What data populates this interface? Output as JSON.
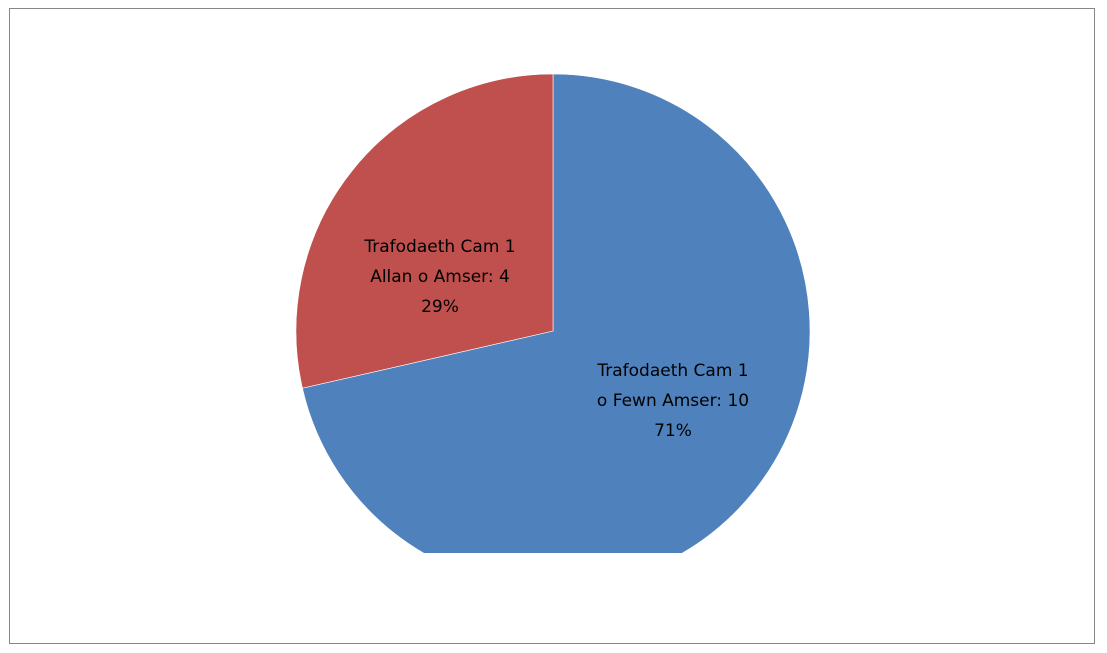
{
  "chart_data": {
    "type": "pie",
    "slices": [
      {
        "label": "Trafodaeth Cam 1 o Fewn Amser",
        "value": 10,
        "percent": "71%",
        "color": "#4F81BD",
        "data_label_lines": [
          "Trafodaeth Cam 1",
          "o Fewn Amser: 10",
          "71%"
        ]
      },
      {
        "label": "Trafodaeth Cam 1 Allan o Amser",
        "value": 4,
        "percent": "29%",
        "color": "#C0504D",
        "data_label_lines": [
          "Trafodaeth Cam 1",
          "Allan o Amser: 4",
          "29%"
        ]
      }
    ],
    "start_angle": "12 o'clock",
    "direction": "clockwise",
    "legend": "none",
    "title": "",
    "frame_border_color": "#868686"
  }
}
